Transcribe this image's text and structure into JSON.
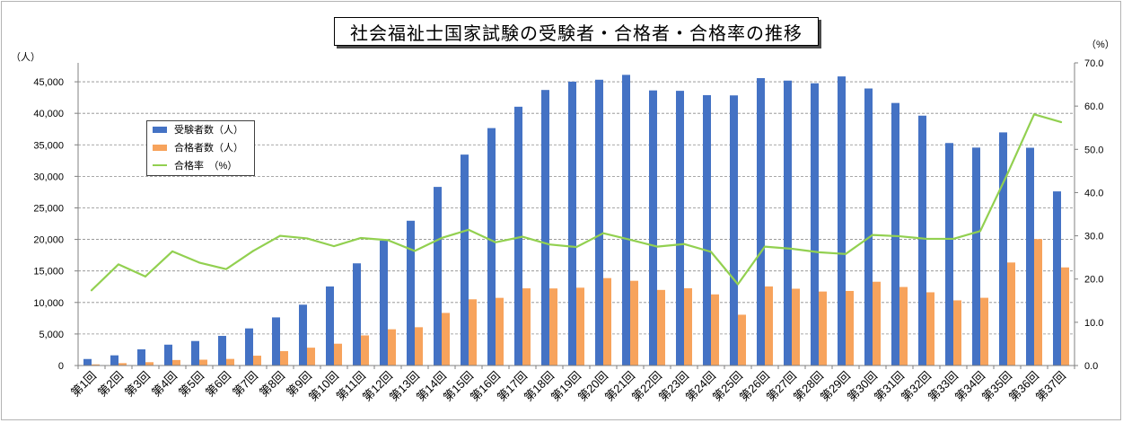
{
  "chart_data": {
    "type": "bar",
    "title": "社会福祉士国家試験の受験者・合格者・合格率の推移",
    "categories": [
      "第1回",
      "第2回",
      "第3回",
      "第4回",
      "第5回",
      "第6回",
      "第7回",
      "第8回",
      "第9回",
      "第10回",
      "第11回",
      "第12回",
      "第13回",
      "第14回",
      "第15回",
      "第16回",
      "第17回",
      "第18回",
      "第19回",
      "第20回",
      "第21回",
      "第22回",
      "第23回",
      "第24回",
      "第25回",
      "第26回",
      "第27回",
      "第28回",
      "第29回",
      "第30回",
      "第31回",
      "第32回",
      "第33回",
      "第34回",
      "第35回",
      "第36回",
      "第37回"
    ],
    "series": [
      {
        "name": "受験者数（人）",
        "type": "bar",
        "axis": "left",
        "color": "#4472C4",
        "values": [
          1033,
          1617,
          2565,
          3309,
          3886,
          4698,
          5887,
          7633,
          9649,
          12535,
          16206,
          19812,
          22962,
          28329,
          33452,
          37657,
          41044,
          43701,
          45022,
          45324,
          46099,
          43631,
          43568,
          42882,
          42841,
          45578,
          45187,
          44764,
          45849,
          43937,
          41639,
          39629,
          35287,
          34563,
          36974,
          34539,
          27616
        ]
      },
      {
        "name": "合格者数（人）",
        "type": "bar",
        "axis": "left",
        "color": "#F7A35C",
        "values": [
          180,
          378,
          528,
          874,
          924,
          1049,
          1560,
          2291,
          2832,
          3460,
          4774,
          5749,
          6074,
          8343,
          10501,
          10733,
          12241,
          12222,
          12345,
          13865,
          13436,
          11989,
          12255,
          11282,
          8058,
          12540,
          12181,
          11735,
          11828,
          13288,
          12456,
          11612,
          10333,
          10742,
          16338,
          20050,
          15561
        ]
      },
      {
        "name": "合格率　（%）",
        "type": "line",
        "axis": "right",
        "color": "#92D050",
        "values": [
          17.4,
          23.4,
          20.6,
          26.4,
          23.8,
          22.3,
          26.5,
          30.0,
          29.4,
          27.6,
          29.5,
          29.0,
          26.5,
          29.5,
          31.4,
          28.5,
          29.8,
          28.0,
          27.4,
          30.6,
          29.1,
          27.5,
          28.1,
          26.3,
          18.8,
          27.5,
          27.0,
          26.2,
          25.8,
          30.2,
          29.9,
          29.3,
          29.3,
          31.1,
          44.2,
          58.1,
          56.3
        ]
      }
    ],
    "y_left": {
      "label": "（人）",
      "ylim": [
        0,
        48000
      ],
      "ticks": [
        0,
        5000,
        10000,
        15000,
        20000,
        25000,
        30000,
        35000,
        40000,
        45000
      ],
      "tick_labels": [
        "0",
        "5,000",
        "10,000",
        "15,000",
        "20,000",
        "25,000",
        "30,000",
        "35,000",
        "40,000",
        "45,000"
      ]
    },
    "y_right": {
      "label": "（%）",
      "ylim": [
        0,
        70
      ],
      "ticks": [
        0,
        10,
        20,
        30,
        40,
        50,
        60,
        70
      ],
      "tick_labels": [
        "0.0",
        "10.0",
        "20.0",
        "30.0",
        "40.0",
        "50.0",
        "60.0",
        "70.0"
      ]
    },
    "grid": true,
    "legend_position": "upper-left"
  }
}
